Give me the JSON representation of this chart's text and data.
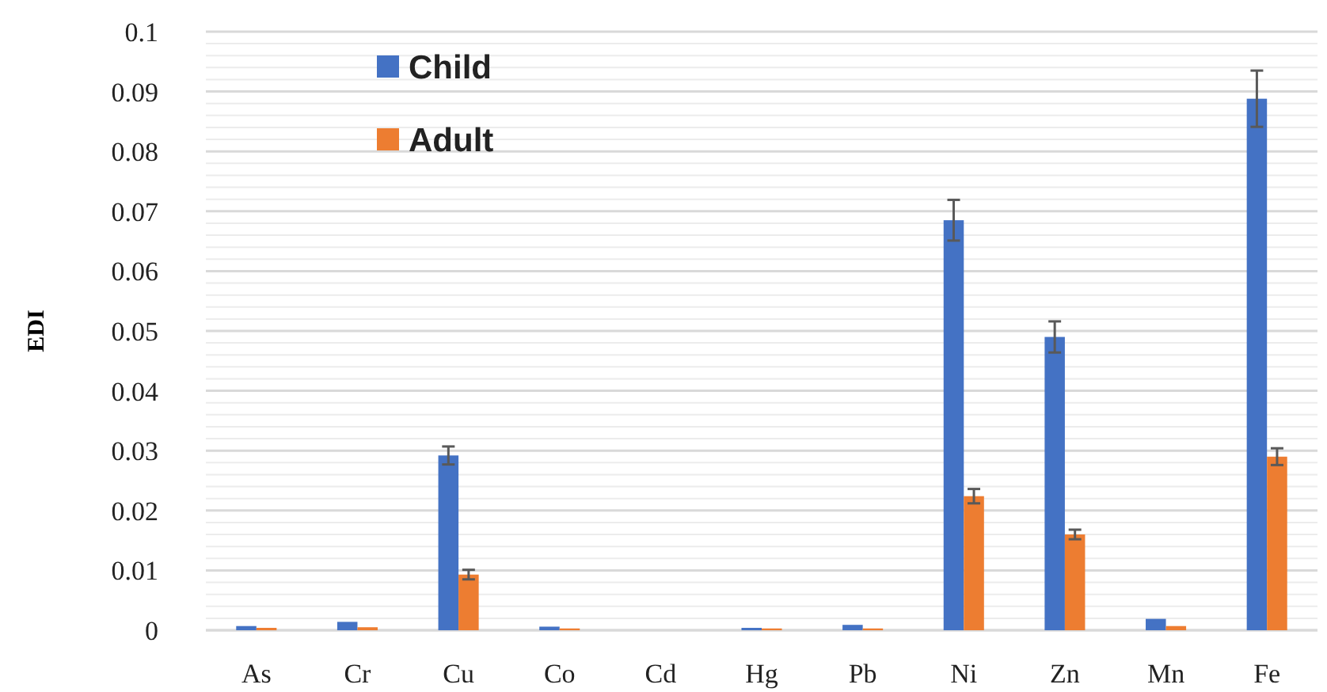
{
  "chart_data": {
    "type": "bar",
    "ylabel": "EDI",
    "categories": [
      "As",
      "Cr",
      "Cu",
      "Co",
      "Cd",
      "Hg",
      "Pb",
      "Ni",
      "Zn",
      "Mn",
      "Fe"
    ],
    "series": [
      {
        "name": "Child",
        "color": "#4472c4",
        "values": [
          0.0007,
          0.0014,
          0.0292,
          0.0006,
          0,
          0.0004,
          0.0009,
          0.0685,
          0.049,
          0.0019,
          0.0888
        ],
        "errors": [
          null,
          null,
          0.0015,
          null,
          null,
          null,
          null,
          0.0034,
          0.0026,
          null,
          0.0047
        ]
      },
      {
        "name": "Adult",
        "color": "#ed7d31",
        "values": [
          0.0004,
          0.0005,
          0.0093,
          0.0003,
          0,
          0.0003,
          0.0003,
          0.0224,
          0.016,
          0.0007,
          0.029
        ],
        "errors": [
          null,
          null,
          0.0008,
          null,
          null,
          null,
          null,
          0.0012,
          0.0008,
          null,
          0.0014
        ]
      }
    ],
    "ylim": [
      0,
      0.1
    ],
    "yticks": [
      0,
      {
        "value": 0.002,
        "label": null
      },
      {
        "value": 0.004,
        "label": null
      },
      {
        "value": 0.006,
        "label": null
      },
      {
        "value": 0.008,
        "label": null
      },
      0.01,
      {
        "value": 0.012,
        "label": null
      },
      {
        "value": 0.014,
        "label": null
      },
      {
        "value": 0.016,
        "label": null
      },
      {
        "value": 0.018,
        "label": null
      },
      0.02,
      {
        "value": 0.022,
        "label": null
      },
      {
        "value": 0.024,
        "label": null
      },
      {
        "value": 0.026,
        "label": null
      },
      {
        "value": 0.028,
        "label": null
      },
      0.03,
      {
        "value": 0.032,
        "label": null
      },
      {
        "value": 0.034,
        "label": null
      },
      {
        "value": 0.036,
        "label": null
      },
      {
        "value": 0.038,
        "label": null
      },
      0.04,
      {
        "value": 0.042,
        "label": null
      },
      {
        "value": 0.044,
        "label": null
      },
      {
        "value": 0.046,
        "label": null
      },
      {
        "value": 0.048,
        "label": null
      },
      0.05,
      {
        "value": 0.052,
        "label": null
      },
      {
        "value": 0.054,
        "label": null
      },
      {
        "value": 0.056,
        "label": null
      },
      {
        "value": 0.058,
        "label": null
      },
      0.06,
      {
        "value": 0.062,
        "label": null
      },
      {
        "value": 0.064,
        "label": null
      },
      {
        "value": 0.066,
        "label": null
      },
      {
        "value": 0.068,
        "label": null
      },
      0.07,
      {
        "value": 0.072,
        "label": null
      },
      {
        "value": 0.074,
        "label": null
      },
      {
        "value": 0.076,
        "label": null
      },
      {
        "value": 0.078,
        "label": null
      },
      0.08,
      {
        "value": 0.082,
        "label": null
      },
      {
        "value": 0.084,
        "label": null
      },
      {
        "value": 0.086,
        "label": null
      },
      {
        "value": 0.088,
        "label": null
      },
      0.09,
      {
        "value": 0.092,
        "label": null
      },
      {
        "value": 0.094,
        "label": null
      },
      {
        "value": 0.096,
        "label": null
      },
      {
        "value": 0.098,
        "label": null
      },
      0.1
    ],
    "grid": "y",
    "legend": "top left"
  }
}
